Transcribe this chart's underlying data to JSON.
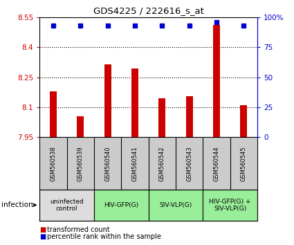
{
  "title": "GDS4225 / 222616_s_at",
  "samples": [
    "GSM560538",
    "GSM560539",
    "GSM560540",
    "GSM560541",
    "GSM560542",
    "GSM560543",
    "GSM560544",
    "GSM560545"
  ],
  "bar_values": [
    8.18,
    8.055,
    8.315,
    8.295,
    8.145,
    8.155,
    8.51,
    8.11
  ],
  "percentile_values": [
    93,
    93,
    93,
    93,
    93,
    93,
    96,
    93
  ],
  "ylim_left": [
    7.95,
    8.55
  ],
  "ylim_right": [
    0,
    100
  ],
  "yticks_left": [
    7.95,
    8.1,
    8.25,
    8.4,
    8.55
  ],
  "yticks_right": [
    0,
    25,
    50,
    75,
    100
  ],
  "ytick_labels_left": [
    "7.95",
    "8.1",
    "8.25",
    "8.4",
    "8.55"
  ],
  "ytick_labels_right": [
    "0",
    "25",
    "50",
    "75",
    "100%"
  ],
  "bar_color": "#cc0000",
  "dot_color": "#0000cc",
  "bar_bottom": 7.95,
  "bar_width": 0.25,
  "groups": [
    {
      "label": "uninfected\ncontrol",
      "start": 0,
      "end": 2,
      "color": "#dddddd"
    },
    {
      "label": "HIV-GFP(G)",
      "start": 2,
      "end": 4,
      "color": "#99ee99"
    },
    {
      "label": "SIV-VLP(G)",
      "start": 4,
      "end": 6,
      "color": "#99ee99"
    },
    {
      "label": "HIV-GFP(G) +\nSIV-VLP(G)",
      "start": 6,
      "end": 8,
      "color": "#99ee99"
    }
  ],
  "legend_red_label": "transformed count",
  "legend_blue_label": "percentile rank within the sample",
  "infection_label": "infection",
  "bg_color": "#ffffff",
  "sample_area_color": "#cccccc",
  "dotted_gridlines": [
    8.1,
    8.25,
    8.4
  ]
}
